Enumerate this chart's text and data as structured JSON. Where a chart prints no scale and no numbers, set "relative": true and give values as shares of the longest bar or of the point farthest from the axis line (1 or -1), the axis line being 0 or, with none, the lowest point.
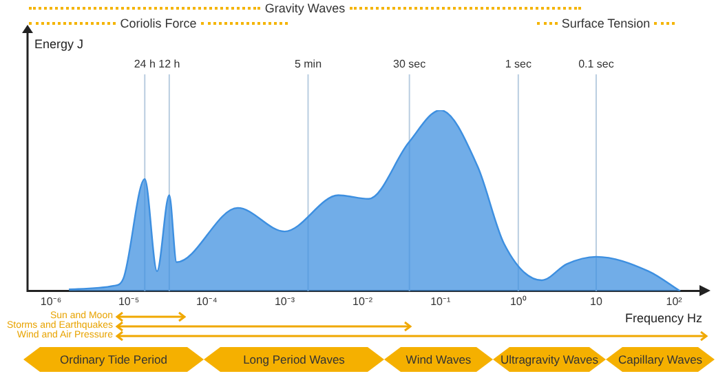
{
  "chart_data": {
    "type": "area",
    "relative": true,
    "xlabel": "Frequency Hz",
    "ylabel": "Energy J",
    "log": "x",
    "xlim": [
      5e-07,
      230
    ],
    "xticks": [
      {
        "value": 1e-06,
        "label": "10⁻⁶"
      },
      {
        "value": 1e-05,
        "label": "10⁻⁵"
      },
      {
        "value": 0.0001,
        "label": "10⁻⁴"
      },
      {
        "value": 0.001,
        "label": "10⁻³"
      },
      {
        "value": 0.01,
        "label": "10⁻²"
      },
      {
        "value": 0.1,
        "label": "10⁻¹"
      },
      {
        "value": 1,
        "label": "10⁰"
      },
      10,
      {
        "value": 100,
        "label": "10²"
      }
    ],
    "series": [
      {
        "color": "#3d8fe0",
        "x": [
          1.7e-06,
          6.5e-06,
          8.5e-06,
          1.6e-05,
          2.3e-05,
          3.3e-05,
          4.1e-05,
          0.00025,
          0.001,
          0.0049,
          0.012,
          0.039,
          0.1,
          0.3,
          0.66,
          2,
          4.2,
          10,
          47,
          120
        ],
        "values": [
          0.01,
          0.03,
          0.07,
          0.62,
          0.11,
          0.53,
          0.16,
          0.46,
          0.33,
          0.53,
          0.51,
          0.82,
          1,
          0.69,
          0.26,
          0.06,
          0.15,
          0.19,
          0.11,
          0
        ]
      }
    ],
    "ref_lines": [
      {
        "axis": "x",
        "value": 1.6e-05,
        "label": "24 h",
        "color": "#b9cde0"
      },
      {
        "axis": "x",
        "value": 3.3e-05,
        "label": "12 h",
        "color": "#b9cde0"
      },
      {
        "axis": "x",
        "value": 0.002,
        "label": "5 min",
        "color": "#b9cde0"
      },
      {
        "axis": "x",
        "value": 0.04,
        "label": "30 sec",
        "color": "#b9cde0"
      },
      {
        "axis": "x",
        "value": 1,
        "label": "1 sec",
        "color": "#b9cde0"
      },
      {
        "axis": "x",
        "value": 10,
        "label": "0.1 sec",
        "color": "#b9cde0"
      }
    ],
    "annotations": [
      "Gravity Waves",
      "Coriolis Force",
      "Surface Tension",
      "Sun and Moon",
      "Storms and Earthquakes",
      "Wind and Air Pressure",
      "Ordinary Tide Period",
      "Long Period Waves",
      "Wind Waves",
      "Ultragravity Waves",
      "Capillary Waves"
    ],
    "grid": false,
    "legend": false
  }
}
